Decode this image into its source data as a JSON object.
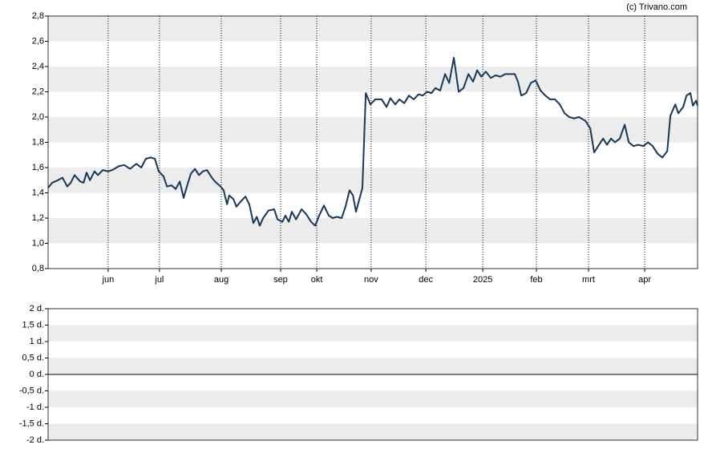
{
  "chart_data": [
    {
      "type": "line",
      "source": "(c) Trivano.com",
      "x": [
        0,
        1.6,
        3.8,
        5.6,
        7.5,
        8.8,
        10.3,
        12.5,
        13.8,
        15,
        16.3,
        18.1,
        19.4,
        21.3,
        23.4,
        25,
        27.5,
        29.7,
        31.9,
        34.4,
        36.3,
        38.1,
        40,
        41.6,
        43.1,
        45,
        46.3,
        48.1,
        49.7,
        51.3,
        52.8,
        54.1,
        55.6,
        57.2,
        58.8,
        60.3,
        61.9,
        63.8,
        65,
        67.2,
        68.4,
        69.7,
        70.6,
        72.2,
        73.4,
        75,
        76.9,
        78.4,
        80,
        81.3,
        82.5,
        83.8,
        85.9,
        88.1,
        89.4,
        91.3,
        92.5,
        93.8,
        95,
        96.6,
        98.8,
        100.6,
        102.5,
        104.1,
        105.6,
        107.5,
        109.4,
        110.9,
        112.5,
        114.4,
        115.9,
        117.5,
        118.8,
        120,
        122.5,
        123.8,
        125.6,
        127.5,
        130,
        131.9,
        133.4,
        135.3,
        136.9,
        138.8,
        140.6,
        142.5,
        144.4,
        145.9,
        147.8,
        149.4,
        150.9,
        152.8,
        154.7,
        156.3,
        158.1,
        160,
        161.9,
        163.8,
        165.6,
        167.2,
        168.8,
        170.6,
        172.5,
        174.4,
        176.3,
        178.1,
        180,
        181.9,
        183.1,
        184.4,
        186.3,
        188.1,
        190,
        191.9,
        193.8,
        195.6,
        197.5,
        199.4,
        201.3,
        203.1,
        205,
        206.9,
        209.4,
        211.3,
        212.8,
        214.7,
        216.3,
        217.8,
        219.4,
        220.9,
        222.8,
        224.7,
        226.3,
        228.1,
        230,
        231.9,
        233.8,
        235.6,
        237.5,
        239.4,
        241.3,
        242.5,
        244.4,
        245.6,
        247.5,
        248.8,
        250.3,
        251.3,
        252.5,
        253.1
      ],
      "series": [
        {
          "color": "#15375a",
          "values": [
            1.44,
            1.48,
            1.5,
            1.52,
            1.45,
            1.48,
            1.54,
            1.49,
            1.48,
            1.56,
            1.5,
            1.57,
            1.54,
            1.58,
            1.57,
            1.58,
            1.61,
            1.62,
            1.59,
            1.63,
            1.6,
            1.67,
            1.68,
            1.67,
            1.57,
            1.53,
            1.45,
            1.46,
            1.43,
            1.49,
            1.36,
            1.45,
            1.55,
            1.59,
            1.54,
            1.57,
            1.58,
            1.52,
            1.49,
            1.45,
            1.42,
            1.31,
            1.38,
            1.35,
            1.29,
            1.33,
            1.37,
            1.31,
            1.16,
            1.21,
            1.14,
            1.2,
            1.26,
            1.27,
            1.19,
            1.17,
            1.22,
            1.17,
            1.25,
            1.19,
            1.27,
            1.23,
            1.17,
            1.14,
            1.22,
            1.3,
            1.22,
            1.2,
            1.21,
            1.2,
            1.29,
            1.42,
            1.38,
            1.25,
            1.44,
            2.19,
            2.1,
            2.14,
            2.14,
            2.08,
            2.15,
            2.1,
            2.14,
            2.11,
            2.17,
            2.14,
            2.18,
            2.17,
            2.2,
            2.19,
            2.23,
            2.21,
            2.34,
            2.27,
            2.47,
            2.2,
            2.23,
            2.34,
            2.28,
            2.37,
            2.32,
            2.36,
            2.31,
            2.33,
            2.32,
            2.34,
            2.34,
            2.34,
            2.28,
            2.17,
            2.19,
            2.27,
            2.29,
            2.21,
            2.17,
            2.14,
            2.14,
            2.1,
            2.03,
            2.0,
            1.99,
            2.0,
            1.97,
            1.91,
            1.72,
            1.78,
            1.83,
            1.78,
            1.83,
            1.8,
            1.83,
            1.94,
            1.8,
            1.77,
            1.78,
            1.77,
            1.8,
            1.77,
            1.71,
            1.68,
            1.73,
            2.01,
            2.1,
            2.03,
            2.08,
            2.17,
            2.19,
            2.09,
            2.13,
            2.09
          ]
        }
      ],
      "xlim": [
        0,
        253.1
      ],
      "xticks": [
        {
          "value": 23.4,
          "label": "jun"
        },
        {
          "value": 43.4,
          "label": "jul"
        },
        {
          "value": 67.5,
          "label": "aug"
        },
        {
          "value": 90.6,
          "label": "sep"
        },
        {
          "value": 104.7,
          "label": "okt"
        },
        {
          "value": 125.9,
          "label": "nov"
        },
        {
          "value": 147.2,
          "label": "dec"
        },
        {
          "value": 169.4,
          "label": "2025"
        },
        {
          "value": 190.3,
          "label": "feb"
        },
        {
          "value": 210.6,
          "label": "mrt"
        },
        {
          "value": 232.5,
          "label": "apr"
        }
      ],
      "ylim": [
        0.8,
        2.8
      ],
      "yticks": [
        {
          "value": 0.8,
          "label": "0,8"
        },
        {
          "value": 1.0,
          "label": "1,0"
        },
        {
          "value": 1.2,
          "label": "1,2"
        },
        {
          "value": 1.4,
          "label": "1,4"
        },
        {
          "value": 1.6,
          "label": "1,6"
        },
        {
          "value": 1.8,
          "label": "1,8"
        },
        {
          "value": 2.0,
          "label": "2,0"
        },
        {
          "value": 2.2,
          "label": "2,2"
        },
        {
          "value": 2.4,
          "label": "2,4"
        },
        {
          "value": 2.6,
          "label": "2,6"
        },
        {
          "value": 2.8,
          "label": "2,8"
        }
      ],
      "grid": true
    },
    {
      "type": "bar",
      "ylim": [
        -2,
        2
      ],
      "yticks": [
        {
          "value": -2,
          "label": "-2 d."
        },
        {
          "value": -1.5,
          "label": "-1,5 d."
        },
        {
          "value": -1,
          "label": "-1 d."
        },
        {
          "value": -0.5,
          "label": "-0,5 d."
        },
        {
          "value": 0,
          "label": "0 d."
        },
        {
          "value": 0.5,
          "label": "0,5 d."
        },
        {
          "value": 1,
          "label": "1 d."
        },
        {
          "value": 1.5,
          "label": "1,5 d."
        },
        {
          "value": 2,
          "label": "2 d."
        }
      ]
    }
  ]
}
